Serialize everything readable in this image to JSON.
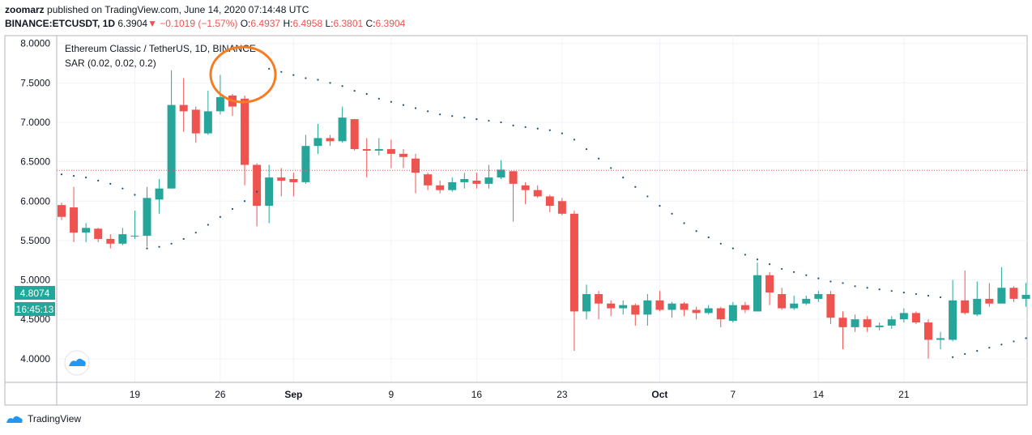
{
  "header": {
    "user": "zoomarz",
    "published_text": "published on TradingView.com, June 14, 2020 07:14:48 UTC",
    "symbol": "BINANCE:ETCUSDT, 1D",
    "last": "6.3904",
    "arrow": "▼",
    "change": "−0.1019 (−1.57%)",
    "o_label": "O:",
    "o_value": "6.4937",
    "h_label": "H:",
    "h_value": "6.4958",
    "l_label": "L:",
    "l_value": "6.3801",
    "c_label": "C:",
    "c_value": "6.3904"
  },
  "legend": {
    "title": "Ethereum Classic / TetherUS, 1D, BINANCE",
    "indicator": "SAR (0.02, 0.02, 0.2)"
  },
  "price_labels": {
    "left_price": "4.8074",
    "left_timer": "16:45:13"
  },
  "footer": {
    "brand": "TradingView"
  },
  "colors": {
    "up": "#26a69a",
    "down": "#ef5350",
    "sar": "#1f4e79",
    "annotation": "#f57c20",
    "current_line": "#ef5350"
  },
  "chart_data": {
    "type": "candlestick",
    "y_ticks": [
      "8.0000",
      "7.5000",
      "7.0000",
      "6.5000",
      "6.0000",
      "5.5000",
      "5.0000",
      "4.5000",
      "4.0000"
    ],
    "ylim": [
      3.7,
      8.1
    ],
    "x_ticks": [
      {
        "label": "19",
        "index": 6
      },
      {
        "label": "26",
        "index": 13
      },
      {
        "label": "Sep",
        "index": 19
      },
      {
        "label": "9",
        "index": 27
      },
      {
        "label": "16",
        "index": 34
      },
      {
        "label": "23",
        "index": 41
      },
      {
        "label": "Oct",
        "index": 49
      },
      {
        "label": "7",
        "index": 55
      },
      {
        "label": "14",
        "index": 62
      },
      {
        "label": "21",
        "index": 69
      }
    ],
    "current_price": 6.3904,
    "candles": [
      {
        "o": 5.95,
        "h": 5.98,
        "l": 5.76,
        "c": 5.8
      },
      {
        "o": 5.92,
        "h": 6.18,
        "l": 5.48,
        "c": 5.6
      },
      {
        "o": 5.6,
        "h": 5.72,
        "l": 5.48,
        "c": 5.66
      },
      {
        "o": 5.65,
        "h": 5.66,
        "l": 5.48,
        "c": 5.52
      },
      {
        "o": 5.52,
        "h": 5.58,
        "l": 5.4,
        "c": 5.46
      },
      {
        "o": 5.46,
        "h": 5.66,
        "l": 5.44,
        "c": 5.58
      },
      {
        "o": 5.56,
        "h": 5.88,
        "l": 5.52,
        "c": 5.56
      },
      {
        "o": 5.56,
        "h": 6.18,
        "l": 5.42,
        "c": 6.04
      },
      {
        "o": 6.02,
        "h": 6.28,
        "l": 5.84,
        "c": 6.16
      },
      {
        "o": 6.16,
        "h": 7.66,
        "l": 6.16,
        "c": 7.22
      },
      {
        "o": 7.22,
        "h": 7.56,
        "l": 6.88,
        "c": 7.14
      },
      {
        "o": 7.16,
        "h": 7.2,
        "l": 6.74,
        "c": 6.86
      },
      {
        "o": 6.86,
        "h": 7.4,
        "l": 6.84,
        "c": 7.14
      },
      {
        "o": 7.14,
        "h": 7.6,
        "l": 7.1,
        "c": 7.32
      },
      {
        "o": 7.34,
        "h": 7.36,
        "l": 7.08,
        "c": 7.2
      },
      {
        "o": 7.3,
        "h": 7.34,
        "l": 6.2,
        "c": 6.46
      },
      {
        "o": 6.46,
        "h": 6.48,
        "l": 5.68,
        "c": 5.94
      },
      {
        "o": 5.94,
        "h": 6.46,
        "l": 5.72,
        "c": 6.3
      },
      {
        "o": 6.3,
        "h": 6.42,
        "l": 6.06,
        "c": 6.26
      },
      {
        "o": 6.28,
        "h": 6.36,
        "l": 6.06,
        "c": 6.24
      },
      {
        "o": 6.24,
        "h": 6.84,
        "l": 6.22,
        "c": 6.7
      },
      {
        "o": 6.7,
        "h": 6.98,
        "l": 6.6,
        "c": 6.8
      },
      {
        "o": 6.8,
        "h": 6.84,
        "l": 6.7,
        "c": 6.76
      },
      {
        "o": 6.76,
        "h": 7.2,
        "l": 6.74,
        "c": 7.06
      },
      {
        "o": 7.04,
        "h": 7.04,
        "l": 6.64,
        "c": 6.66
      },
      {
        "o": 6.66,
        "h": 6.8,
        "l": 6.3,
        "c": 6.64
      },
      {
        "o": 6.64,
        "h": 6.8,
        "l": 6.58,
        "c": 6.66
      },
      {
        "o": 6.66,
        "h": 6.78,
        "l": 6.42,
        "c": 6.6
      },
      {
        "o": 6.6,
        "h": 6.66,
        "l": 6.42,
        "c": 6.56
      },
      {
        "o": 6.54,
        "h": 6.6,
        "l": 6.1,
        "c": 6.36
      },
      {
        "o": 6.34,
        "h": 6.36,
        "l": 6.14,
        "c": 6.2
      },
      {
        "o": 6.2,
        "h": 6.26,
        "l": 6.1,
        "c": 6.14
      },
      {
        "o": 6.14,
        "h": 6.3,
        "l": 6.12,
        "c": 6.24
      },
      {
        "o": 6.24,
        "h": 6.36,
        "l": 6.16,
        "c": 6.28
      },
      {
        "o": 6.26,
        "h": 6.36,
        "l": 6.16,
        "c": 6.22
      },
      {
        "o": 6.22,
        "h": 6.46,
        "l": 6.16,
        "c": 6.3
      },
      {
        "o": 6.3,
        "h": 6.52,
        "l": 6.28,
        "c": 6.4
      },
      {
        "o": 6.38,
        "h": 6.38,
        "l": 5.74,
        "c": 6.22
      },
      {
        "o": 6.2,
        "h": 6.24,
        "l": 5.96,
        "c": 6.14
      },
      {
        "o": 6.14,
        "h": 6.2,
        "l": 6.04,
        "c": 6.06
      },
      {
        "o": 6.06,
        "h": 6.08,
        "l": 5.86,
        "c": 5.94
      },
      {
        "o": 6.0,
        "h": 6.04,
        "l": 5.82,
        "c": 5.84
      },
      {
        "o": 5.84,
        "h": 5.88,
        "l": 4.1,
        "c": 4.6
      },
      {
        "o": 4.6,
        "h": 4.94,
        "l": 4.5,
        "c": 4.82
      },
      {
        "o": 4.82,
        "h": 4.86,
        "l": 4.5,
        "c": 4.7
      },
      {
        "o": 4.7,
        "h": 4.74,
        "l": 4.54,
        "c": 4.64
      },
      {
        "o": 4.64,
        "h": 4.74,
        "l": 4.56,
        "c": 4.68
      },
      {
        "o": 4.68,
        "h": 4.7,
        "l": 4.42,
        "c": 4.56
      },
      {
        "o": 4.56,
        "h": 4.82,
        "l": 4.42,
        "c": 4.74
      },
      {
        "o": 4.74,
        "h": 4.86,
        "l": 4.6,
        "c": 4.62
      },
      {
        "o": 4.62,
        "h": 4.72,
        "l": 4.52,
        "c": 4.7
      },
      {
        "o": 4.7,
        "h": 4.72,
        "l": 4.54,
        "c": 4.62
      },
      {
        "o": 4.62,
        "h": 4.66,
        "l": 4.5,
        "c": 4.58
      },
      {
        "o": 4.58,
        "h": 4.68,
        "l": 4.56,
        "c": 4.64
      },
      {
        "o": 4.64,
        "h": 4.66,
        "l": 4.4,
        "c": 4.5
      },
      {
        "o": 4.48,
        "h": 4.72,
        "l": 4.46,
        "c": 4.68
      },
      {
        "o": 4.68,
        "h": 4.72,
        "l": 4.58,
        "c": 4.62
      },
      {
        "o": 4.6,
        "h": 5.22,
        "l": 4.6,
        "c": 5.06
      },
      {
        "o": 5.06,
        "h": 5.1,
        "l": 4.68,
        "c": 4.84
      },
      {
        "o": 4.82,
        "h": 4.9,
        "l": 4.62,
        "c": 4.64
      },
      {
        "o": 4.64,
        "h": 4.8,
        "l": 4.62,
        "c": 4.7
      },
      {
        "o": 4.7,
        "h": 4.8,
        "l": 4.68,
        "c": 4.76
      },
      {
        "o": 4.76,
        "h": 4.86,
        "l": 4.72,
        "c": 4.82
      },
      {
        "o": 4.82,
        "h": 4.86,
        "l": 4.44,
        "c": 4.52
      },
      {
        "o": 4.52,
        "h": 4.6,
        "l": 4.12,
        "c": 4.4
      },
      {
        "o": 4.4,
        "h": 4.56,
        "l": 4.34,
        "c": 4.5
      },
      {
        "o": 4.5,
        "h": 4.54,
        "l": 4.34,
        "c": 4.4
      },
      {
        "o": 4.4,
        "h": 4.46,
        "l": 4.36,
        "c": 4.42
      },
      {
        "o": 4.42,
        "h": 4.54,
        "l": 4.38,
        "c": 4.5
      },
      {
        "o": 4.5,
        "h": 4.64,
        "l": 4.46,
        "c": 4.58
      },
      {
        "o": 4.58,
        "h": 4.6,
        "l": 4.44,
        "c": 4.46
      },
      {
        "o": 4.46,
        "h": 4.5,
        "l": 4.0,
        "c": 4.24
      },
      {
        "o": 4.24,
        "h": 4.34,
        "l": 4.12,
        "c": 4.26
      },
      {
        "o": 4.24,
        "h": 5.0,
        "l": 4.22,
        "c": 4.74
      },
      {
        "o": 4.74,
        "h": 5.12,
        "l": 4.56,
        "c": 4.58
      },
      {
        "o": 4.56,
        "h": 4.98,
        "l": 4.54,
        "c": 4.76
      },
      {
        "o": 4.76,
        "h": 4.96,
        "l": 4.66,
        "c": 4.7
      },
      {
        "o": 4.7,
        "h": 5.16,
        "l": 4.7,
        "c": 4.9
      },
      {
        "o": 4.9,
        "h": 4.92,
        "l": 4.72,
        "c": 4.76
      },
      {
        "o": 4.76,
        "h": 4.96,
        "l": 4.66,
        "c": 4.81
      }
    ],
    "sar": [
      6.34,
      6.32,
      6.3,
      6.26,
      6.22,
      6.16,
      6.08,
      5.4,
      5.42,
      5.46,
      5.52,
      5.6,
      5.7,
      5.8,
      5.9,
      6.0,
      6.12,
      7.68,
      7.64,
      7.6,
      7.56,
      7.54,
      7.5,
      7.46,
      7.4,
      7.36,
      7.3,
      7.26,
      7.22,
      7.18,
      7.14,
      7.1,
      7.08,
      7.06,
      7.04,
      7.02,
      7.0,
      6.96,
      6.94,
      6.92,
      6.9,
      6.86,
      6.78,
      6.66,
      6.54,
      6.42,
      6.3,
      6.18,
      6.06,
      5.94,
      5.84,
      5.72,
      5.62,
      5.54,
      5.46,
      5.4,
      5.32,
      5.26,
      5.2,
      5.14,
      5.1,
      5.06,
      5.02,
      4.98,
      4.96,
      4.92,
      4.9,
      4.88,
      4.86,
      4.84,
      4.82,
      4.8,
      4.78,
      4.02,
      4.06,
      4.1,
      4.14,
      4.18,
      4.22,
      4.26
    ]
  }
}
